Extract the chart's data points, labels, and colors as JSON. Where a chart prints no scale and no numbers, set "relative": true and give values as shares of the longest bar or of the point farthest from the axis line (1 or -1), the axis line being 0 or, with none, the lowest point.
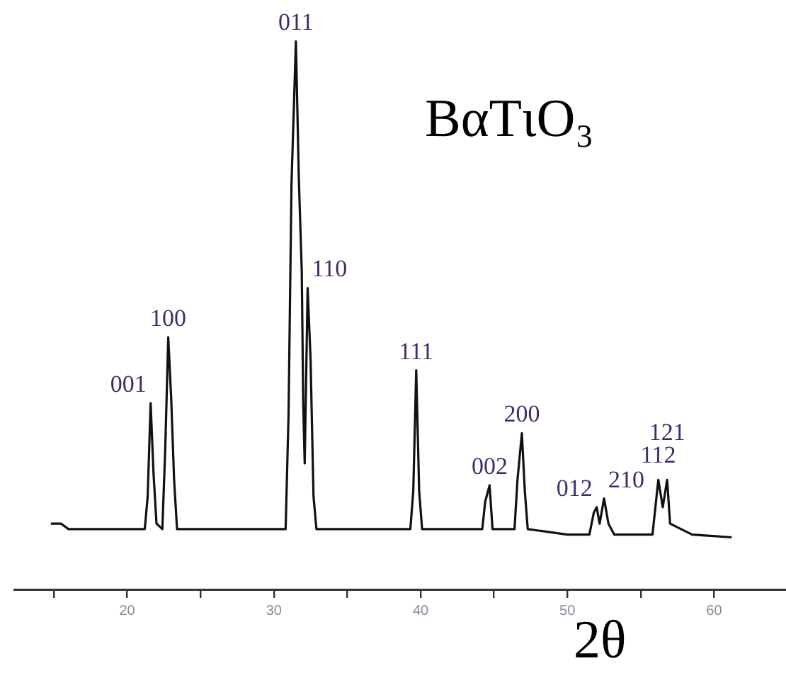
{
  "chart_data": {
    "type": "line",
    "title": "BαTιO₃",
    "xlabel": "2θ",
    "relative": true,
    "grid": false,
    "legend": false,
    "marker": "none",
    "tick_labels": "x",
    "xlim": [
      12.3,
      64.9
    ],
    "xticks": [
      {
        "value": 15,
        "label": null
      },
      20,
      {
        "value": 25,
        "label": null
      },
      30,
      {
        "value": 35,
        "label": null
      },
      40,
      {
        "value": 45,
        "label": null
      },
      50,
      {
        "value": 55,
        "label": null
      },
      60
    ],
    "series": [
      {
        "color": "#111111",
        "x": [
          14.8,
          15.5,
          16,
          18,
          21.2,
          21.4,
          21.6,
          21.8,
          22.0,
          22.4,
          22.6,
          22.8,
          23.0,
          23.2,
          23.4,
          27,
          30.8,
          31.0,
          31.2,
          31.5,
          31.7,
          31.9,
          32.0,
          32.1,
          32.3,
          32.5,
          32.7,
          32.9,
          35,
          37,
          39.3,
          39.5,
          39.7,
          39.9,
          40.1,
          43,
          44.2,
          44.4,
          44.7,
          44.9,
          46.4,
          46.6,
          46.9,
          47.1,
          47.3,
          50.0,
          51.5,
          51.8,
          52.0,
          52.2,
          52.5,
          52.8,
          53.2,
          55.8,
          56.0,
          56.2,
          56.5,
          56.8,
          57.0,
          58.5,
          61.2
        ],
        "values": [
          0.12,
          0.12,
          0.11,
          0.11,
          0.11,
          0.17,
          0.34,
          0.21,
          0.12,
          0.11,
          0.26,
          0.46,
          0.35,
          0.2,
          0.11,
          0.11,
          0.11,
          0.32,
          0.74,
          1.0,
          0.75,
          0.58,
          0.34,
          0.23,
          0.55,
          0.42,
          0.17,
          0.11,
          0.11,
          0.11,
          0.11,
          0.18,
          0.4,
          0.18,
          0.11,
          0.11,
          0.11,
          0.16,
          0.19,
          0.11,
          0.11,
          0.2,
          0.285,
          0.18,
          0.11,
          0.1,
          0.1,
          0.14,
          0.15,
          0.12,
          0.166,
          0.12,
          0.1,
          0.1,
          0.15,
          0.2,
          0.15,
          0.2,
          0.12,
          0.1,
          0.095
        ]
      }
    ],
    "annotations": [
      {
        "text": "001",
        "x": 21.6,
        "y": 0.34
      },
      {
        "text": "100",
        "x": 22.8,
        "y": 0.46
      },
      {
        "text": "011",
        "x": 31.5,
        "y": 1.0
      },
      {
        "text": "110",
        "x": 32.3,
        "y": 0.55
      },
      {
        "text": "111",
        "x": 39.7,
        "y": 0.4
      },
      {
        "text": "002",
        "x": 44.7,
        "y": 0.19
      },
      {
        "text": "200",
        "x": 46.9,
        "y": 0.285
      },
      {
        "text": "012",
        "x": 52.0,
        "y": 0.15
      },
      {
        "text": "210",
        "x": 52.5,
        "y": 0.166
      },
      {
        "text": "112",
        "x": 56.2,
        "y": 0.2
      },
      {
        "text": "121",
        "x": 56.8,
        "y": 0.2
      }
    ]
  }
}
